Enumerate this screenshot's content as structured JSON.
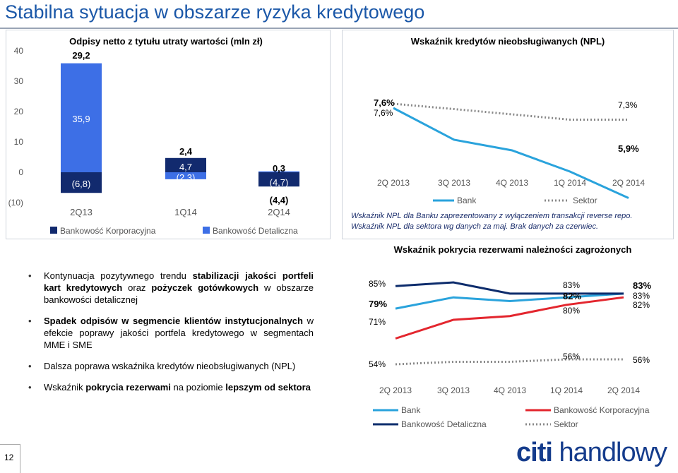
{
  "title": "Stabilna sytuacja w obszarze ryzyka kredytowego",
  "page_number": "12",
  "colors": {
    "blue_bar": "#3d6fe6",
    "dark_bar": "#122a6e",
    "bank": "#2aa3dc",
    "sector": "#888888",
    "korporacyjna": "#e3262e",
    "detaliczna": "#0d2c6c"
  },
  "bullets": [
    {
      "parts": [
        {
          "t": "Kontynuacja pozytywnego trendu ",
          "b": false
        },
        {
          "t": "stabilizacji jakości portfeli kart kredytowych",
          "b": true
        },
        {
          "t": " oraz ",
          "b": false
        },
        {
          "t": "pożyczek gotówkowych",
          "b": true
        },
        {
          "t": " w obszarze bankowości detalicznej",
          "b": false
        }
      ]
    },
    {
      "parts": [
        {
          "t": "Spadek odpisów w segmencie klientów instytucjonalnych",
          "b": true
        },
        {
          "t": " w efekcie poprawy jakości portfela kredytowego w segmentach MME i SME",
          "b": false
        }
      ]
    },
    {
      "parts": [
        {
          "t": "Dalsza poprawa wskaźnika kredytów nieobsługiwanych (NPL)",
          "b": false
        }
      ]
    },
    {
      "parts": [
        {
          "t": "Wskaźnik ",
          "b": false
        },
        {
          "t": "pokrycia rezerwami",
          "b": true
        },
        {
          "t": "  na poziomie ",
          "b": false
        },
        {
          "t": "lepszym od sektora",
          "b": true
        }
      ]
    }
  ],
  "logo": {
    "citi": "citi",
    "handlowy": "handlowy"
  },
  "chart_data": [
    {
      "type": "bar",
      "title": "Odpisy netto z tytułu utraty wartości (mln zł)",
      "categories": [
        "2Q13",
        "1Q14",
        "2Q14"
      ],
      "yticks": [
        "40",
        "30",
        "20",
        "10",
        "0",
        "(10)"
      ],
      "ylim": [
        -10,
        40
      ],
      "series": [
        {
          "name": "Bankowość Korporacyjna",
          "values": [
            -6.8,
            4.7,
            -4.7
          ],
          "labels": [
            "(6,8)",
            "4,7",
            "(4,7)"
          ]
        },
        {
          "name": "Bankowość Detaliczna",
          "values": [
            35.9,
            -2.3,
            0.3
          ],
          "labels": [
            "35,9",
            "(2,3)",
            "0,3"
          ]
        }
      ],
      "totals": [
        29.2,
        2.4,
        -4.4
      ],
      "total_labels": [
        "29,2",
        "2,4",
        "(4,4)"
      ]
    },
    {
      "type": "line",
      "title": "Wskaźnik kredytów nieobsługiwanych (NPL)",
      "x": [
        "2Q 2013",
        "3Q 2013",
        "4Q 2013",
        "1Q 2014",
        "2Q 2014"
      ],
      "series": [
        {
          "name": "Bank",
          "values": [
            7.6,
            7.0,
            6.8,
            6.4,
            5.9
          ]
        },
        {
          "name": "Sektor",
          "values": [
            7.6,
            7.5,
            7.4,
            7.3,
            7.3
          ]
        }
      ],
      "labels": {
        "bank_start": "7,6%",
        "sector_start": "7,6%",
        "sector_end": "7,3%",
        "bank_end": "5,9%"
      },
      "notes": [
        "Wskaźnik NPL dla Banku zaprezentowany z wyłączeniem transakcji reverse repo.",
        "Wskaźnik NPL dla sektora wg danych za maj. Brak danych za czerwiec."
      ]
    },
    {
      "type": "line",
      "title": "Wskaźnik pokrycia rezerwami należności zagrożonych",
      "x": [
        "2Q 2013",
        "3Q 2013",
        "4Q 2013",
        "1Q 2014",
        "2Q 2014"
      ],
      "series": [
        {
          "name": "Bank",
          "values": [
            79,
            82,
            81,
            82,
            83
          ]
        },
        {
          "name": "Bankowość Korporacyjna",
          "values": [
            71,
            76,
            77,
            80,
            82
          ]
        },
        {
          "name": "Bankowość Detaliczna",
          "values": [
            85,
            86,
            83,
            83,
            83
          ]
        },
        {
          "name": "Sektor",
          "values": [
            54,
            55,
            55,
            56,
            56
          ]
        }
      ],
      "labels": {
        "det_start": "85%",
        "bank_start": "79%",
        "korp_start": "71%",
        "sektor_start": "54%",
        "q1_det": "83%",
        "q1_bank": "82%",
        "q1_korp": "80%",
        "q1_sektor": "56%",
        "end_det": "83%",
        "end_bank": "83%",
        "end_korp": "82%",
        "end_sektor": "56%"
      }
    }
  ]
}
